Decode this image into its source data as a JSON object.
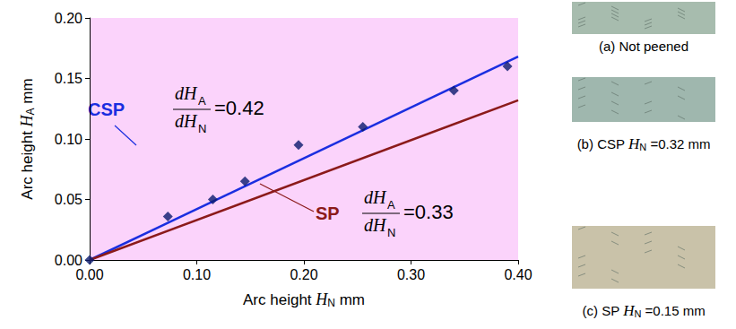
{
  "chart_data": {
    "type": "scatter",
    "xlabel": {
      "main": "Arc height ",
      "symbol": "H",
      "sub": "N",
      "unit": " mm"
    },
    "ylabel": {
      "main": "Arc height ",
      "symbol": "H",
      "sub": "A",
      "unit": " mm"
    },
    "xlim": [
      0,
      0.4
    ],
    "ylim": [
      0,
      0.2
    ],
    "xticks": [
      {
        "value": 0,
        "label": "0.00"
      },
      {
        "value": 0.1,
        "label": "0.10"
      },
      {
        "value": 0.2,
        "label": "0.20"
      },
      {
        "value": 0.3,
        "label": "0.30"
      },
      {
        "value": 0.4,
        "label": "0.40"
      }
    ],
    "yticks": [
      {
        "value": 0,
        "label": "0.00"
      },
      {
        "value": 0.05,
        "label": "0.05"
      },
      {
        "value": 0.1,
        "label": "0.10"
      },
      {
        "value": 0.15,
        "label": "0.15"
      },
      {
        "value": 0.2,
        "label": "0.20"
      }
    ],
    "grid": false,
    "series": [
      {
        "type": "scatter",
        "marker": "diamond",
        "color": "#0a1a6e",
        "x": [
          0,
          0.073,
          0.115,
          0.145,
          0.195,
          0.255,
          0.34,
          0.39
        ],
        "values": [
          0,
          0.036,
          0.05,
          0.065,
          0.095,
          0.11,
          0.14,
          0.16
        ]
      },
      {
        "name": "CSP",
        "type": "line",
        "color": "#1a2ee0",
        "x": [
          0,
          0.4
        ],
        "values": [
          0,
          0.168
        ],
        "slope": {
          "numerator": {
            "text": "dH",
            "sub": "A"
          },
          "denominator": {
            "text": "dH",
            "sub": "N"
          },
          "value": 0.42,
          "label": "=0.42"
        }
      },
      {
        "name": "SP",
        "type": "line",
        "color": "#8b1a1a",
        "x": [
          0,
          0.4
        ],
        "values": [
          0,
          0.132
        ],
        "slope": {
          "numerator": {
            "text": "dH",
            "sub": "A"
          },
          "denominator": {
            "text": "dH",
            "sub": "N"
          },
          "value": 0.33,
          "label": "=0.33"
        }
      }
    ],
    "panels": [
      {
        "prefix": "(a) Not peened"
      },
      {
        "prefix": "(b) CSP ",
        "symbol": "H",
        "sub": "N",
        "suffix": " =0.32 mm"
      },
      {
        "prefix": "(c) SP ",
        "symbol": "H",
        "sub": "N",
        "suffix": " =0.15 mm"
      }
    ]
  }
}
